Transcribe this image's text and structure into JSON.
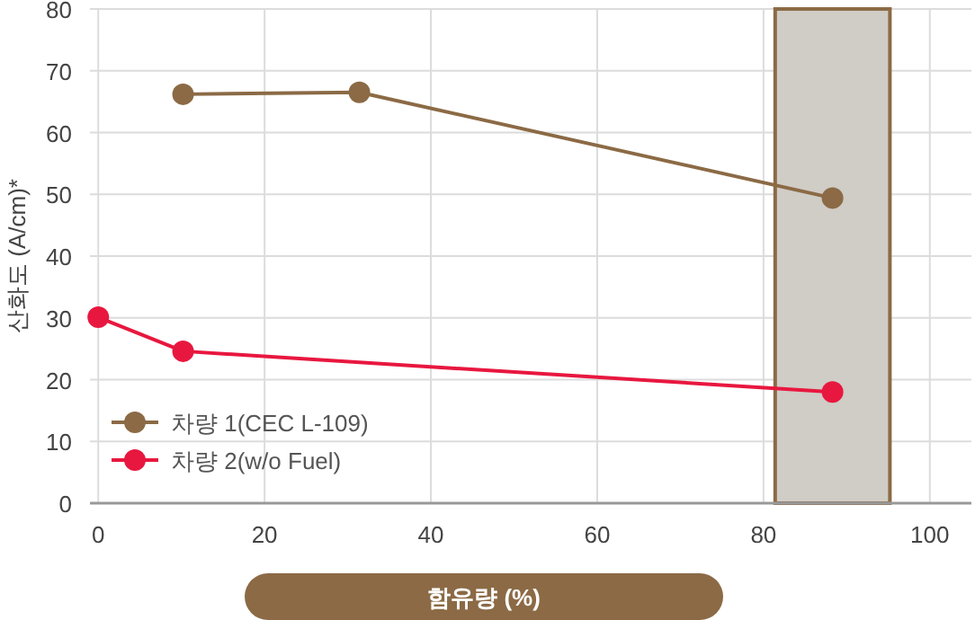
{
  "chart_data": {
    "type": "line",
    "xlabel": "함유량 (%)",
    "ylabel": "산화도 (A/cm)*",
    "xlim": [
      -1,
      105
    ],
    "ylim": [
      0,
      80
    ],
    "xticks": [
      0,
      20,
      40,
      60,
      80,
      100
    ],
    "yticks": [
      0,
      10,
      20,
      30,
      40,
      50,
      60,
      70,
      80
    ],
    "grid": true,
    "legend": "bottom left",
    "marker": "circle",
    "line_style": "solid",
    "bands": [
      {
        "axis": "x",
        "from": 81.4,
        "to": 95.2,
        "color": "#d0ccc6"
      }
    ],
    "series": [
      {
        "name": "차량 1(CEC L-109)",
        "color": "#8b6a45",
        "x": [
          10.2,
          31.4,
          88.3
        ],
        "values": [
          66.2,
          66.5,
          49.4
        ]
      },
      {
        "name": "차량 2(w/o Fuel)",
        "color": "#e8173f",
        "x": [
          0,
          10.2,
          88.3
        ],
        "values": [
          30.1,
          24.6,
          18.0
        ]
      }
    ]
  }
}
